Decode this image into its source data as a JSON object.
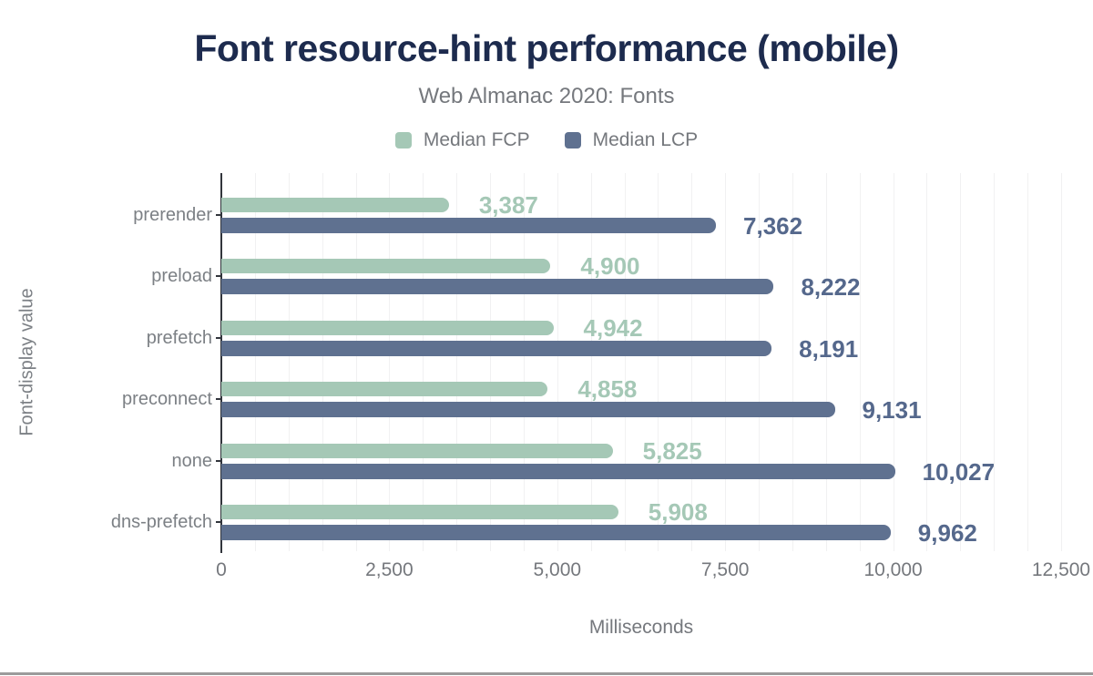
{
  "page": {
    "background": "#ffffff",
    "bottom_rule_color": "#9b9b9b"
  },
  "header": {
    "title": "Font resource-hint performance (mobile)",
    "subtitle": "Web Almanac 2020: Fonts"
  },
  "colors": {
    "title": "#1d2b4e",
    "gray_text": "#75787d",
    "axis": "#32353c",
    "gridline": "#f1f1f2",
    "fcp": "#a5c8b6",
    "lcp": "#5f7190",
    "fcp_label": "#a5c8b6",
    "lcp_label": "#55688c"
  },
  "chart_data": {
    "type": "bar",
    "orientation": "horizontal",
    "title": "Font resource-hint performance (mobile)",
    "subtitle": "Web Almanac 2020: Fonts",
    "categories": [
      "prerender",
      "preload",
      "prefetch",
      "preconnect",
      "none",
      "dns-prefetch"
    ],
    "series": [
      {
        "name": "Median FCP",
        "color": "#a5c8b6",
        "label_color": "#a5c8b6",
        "values": [
          3387,
          4900,
          4942,
          4858,
          5825,
          5908
        ],
        "value_labels": [
          "3,387",
          "4,900",
          "4,942",
          "4,858",
          "5,825",
          "5,908"
        ]
      },
      {
        "name": "Median LCP",
        "color": "#5f7190",
        "label_color": "#55688c",
        "values": [
          7362,
          8222,
          8191,
          9131,
          10027,
          9962
        ],
        "value_labels": [
          "7,362",
          "8,222",
          "8,191",
          "9,131",
          "10,027",
          "9,962"
        ]
      }
    ],
    "xlabel": "Milliseconds",
    "ylabel": "Font-display value",
    "xlim": [
      0,
      12500
    ],
    "xticks": [
      0,
      2500,
      5000,
      7500,
      10000,
      12500
    ],
    "xtick_labels": [
      "0",
      "2,500",
      "5,000",
      "7,500",
      "10,000",
      "12,500"
    ],
    "grid": true,
    "grid_interval": 500,
    "legend_position": "top"
  }
}
